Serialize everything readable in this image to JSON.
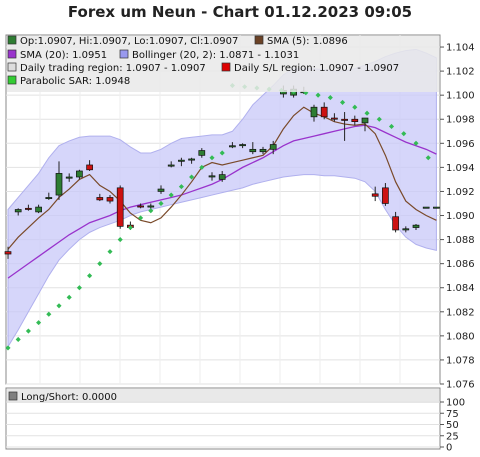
{
  "chart_data": [
    {
      "type": "candlestick",
      "title": "Forex um Neun - Chart 01.12.2023 09:05",
      "ylim": [
        1.076,
        1.105
      ],
      "yticks": [
        "1.076",
        "1.078",
        "1.080",
        "1.082",
        "1.084",
        "1.086",
        "1.088",
        "1.090",
        "1.092",
        "1.094",
        "1.096",
        "1.098",
        "1.100",
        "1.102",
        "1.104"
      ],
      "legend": [
        {
          "label": "Op:1.0907, Hi:1.0907, Lo:1.0907, Cl:1.0907",
          "color": "#2e7d32"
        },
        {
          "label": "SMA (5): 1.0896",
          "color": "#6b4226"
        },
        {
          "label": "SMA (20): 1.0951",
          "color": "#9933cc"
        },
        {
          "label": "Bollinger (20, 2): 1.0871 - 1.1031",
          "color": "#9999ee"
        },
        {
          "label": "Daily trading region: 1.0907 - 1.0907",
          "color": "#dddddd"
        },
        {
          "label": "Daily S/L region: 1.0907 - 1.0907",
          "color": "#dd0000"
        },
        {
          "label": "Parabolic SAR: 1.0948",
          "color": "#33cc33"
        }
      ],
      "candles": [
        {
          "o": 1.087,
          "h": 1.0874,
          "l": 1.0864,
          "c": 1.0868
        },
        {
          "o": 1.0903,
          "h": 1.0906,
          "l": 1.09,
          "c": 1.0905
        },
        {
          "o": 1.0906,
          "h": 1.0909,
          "l": 1.0904,
          "c": 1.0905
        },
        {
          "o": 1.0903,
          "h": 1.0909,
          "l": 1.0902,
          "c": 1.0907
        },
        {
          "o": 1.0915,
          "h": 1.0919,
          "l": 1.0913,
          "c": 1.0915
        },
        {
          "o": 1.0917,
          "h": 1.0945,
          "l": 1.0913,
          "c": 1.0935
        },
        {
          "o": 1.0932,
          "h": 1.0935,
          "l": 1.0928,
          "c": 1.0932
        },
        {
          "o": 1.0932,
          "h": 1.0938,
          "l": 1.093,
          "c": 1.0937
        },
        {
          "o": 1.0942,
          "h": 1.0946,
          "l": 1.0937,
          "c": 1.0938
        },
        {
          "o": 1.0915,
          "h": 1.0918,
          "l": 1.0912,
          "c": 1.0913
        },
        {
          "o": 1.0915,
          "h": 1.0917,
          "l": 1.091,
          "c": 1.0912
        },
        {
          "o": 1.0923,
          "h": 1.0925,
          "l": 1.0889,
          "c": 1.0891
        },
        {
          "o": 1.0892,
          "h": 1.0895,
          "l": 1.0888,
          "c": 1.089
        },
        {
          "o": 1.0908,
          "h": 1.091,
          "l": 1.0906,
          "c": 1.0907
        },
        {
          "o": 1.0907,
          "h": 1.091,
          "l": 1.0905,
          "c": 1.0908
        },
        {
          "o": 1.092,
          "h": 1.0925,
          "l": 1.0918,
          "c": 1.0922
        },
        {
          "o": 1.0942,
          "h": 1.0945,
          "l": 1.094,
          "c": 1.0942
        },
        {
          "o": 1.0945,
          "h": 1.0948,
          "l": 1.0941,
          "c": 1.0946
        },
        {
          "o": 1.0946,
          "h": 1.0948,
          "l": 1.0943,
          "c": 1.0947
        },
        {
          "o": 1.095,
          "h": 1.0956,
          "l": 1.0948,
          "c": 1.0954
        },
        {
          "o": 1.0933,
          "h": 1.0936,
          "l": 1.0929,
          "c": 1.0933
        },
        {
          "o": 1.093,
          "h": 1.0937,
          "l": 1.0928,
          "c": 1.0934
        },
        {
          "o": 1.0958,
          "h": 1.0961,
          "l": 1.0956,
          "c": 1.0958
        },
        {
          "o": 1.0958,
          "h": 1.096,
          "l": 1.0956,
          "c": 1.0959
        },
        {
          "o": 1.0953,
          "h": 1.0961,
          "l": 1.0951,
          "c": 1.0955
        },
        {
          "o": 1.0953,
          "h": 1.0957,
          "l": 1.0951,
          "c": 1.0955
        },
        {
          "o": 1.0955,
          "h": 1.0962,
          "l": 1.0951,
          "c": 1.0959
        },
        {
          "o": 1.1001,
          "h": 1.1008,
          "l": 1.0998,
          "c": 1.1004
        },
        {
          "o": 1.1,
          "h": 1.1008,
          "l": 1.0998,
          "c": 1.1005
        },
        {
          "o": 1.1003,
          "h": 1.1007,
          "l": 1.1001,
          "c": 1.1003
        },
        {
          "o": 1.0982,
          "h": 1.0992,
          "l": 1.0978,
          "c": 1.099
        },
        {
          "o": 1.099,
          "h": 1.0994,
          "l": 1.098,
          "c": 1.0982
        },
        {
          "o": 1.0981,
          "h": 1.0985,
          "l": 1.0978,
          "c": 1.098
        },
        {
          "o": 1.098,
          "h": 1.0986,
          "l": 1.0962,
          "c": 1.0979
        },
        {
          "o": 1.098,
          "h": 1.0983,
          "l": 1.0975,
          "c": 1.0978
        },
        {
          "o": 1.0977,
          "h": 1.0981,
          "l": 1.097,
          "c": 1.0981
        },
        {
          "o": 1.0918,
          "h": 1.0924,
          "l": 1.0912,
          "c": 1.0916
        },
        {
          "o": 1.0923,
          "h": 1.0927,
          "l": 1.0908,
          "c": 1.091
        },
        {
          "o": 1.0899,
          "h": 1.0903,
          "l": 1.0886,
          "c": 1.0888
        },
        {
          "o": 1.0888,
          "h": 1.0891,
          "l": 1.0886,
          "c": 1.0889
        },
        {
          "o": 1.089,
          "h": 1.0893,
          "l": 1.0888,
          "c": 1.0892
        },
        {
          "o": 1.0907,
          "h": 1.0907,
          "l": 1.0907,
          "c": 1.0907
        },
        {
          "o": 1.0907,
          "h": 1.0907,
          "l": 1.0907,
          "c": 1.0907
        }
      ],
      "sma5": [
        1.0872,
        1.0882,
        1.089,
        1.0898,
        1.0905,
        1.0915,
        1.0922,
        1.093,
        1.0934,
        1.0925,
        1.092,
        1.0912,
        1.0902,
        1.0896,
        1.0894,
        1.0898,
        1.0907,
        1.0917,
        1.0928,
        1.094,
        1.0944,
        1.0942,
        1.0944,
        1.0946,
        1.0948,
        1.095,
        1.0958,
        1.0972,
        1.0983,
        1.099,
        1.0985,
        1.0982,
        1.0978,
        1.0976,
        1.0975,
        1.0976,
        1.0968,
        1.095,
        1.0928,
        1.0912,
        1.0905,
        1.09,
        1.0896
      ],
      "sma20": [
        1.0848,
        1.0854,
        1.086,
        1.0866,
        1.0872,
        1.0878,
        1.0884,
        1.0889,
        1.0894,
        1.0897,
        1.09,
        1.0904,
        1.0907,
        1.0909,
        1.0911,
        1.0913,
        1.0915,
        1.0917,
        1.092,
        1.0923,
        1.0926,
        1.093,
        1.0935,
        1.094,
        1.0944,
        1.0948,
        1.0953,
        1.0958,
        1.0962,
        1.0964,
        1.0966,
        1.0968,
        1.097,
        1.0972,
        1.0974,
        1.0975,
        1.0973,
        1.0969,
        1.0965,
        1.0961,
        1.0958,
        1.0955,
        1.0951
      ],
      "bb_upper": [
        1.0905,
        1.0915,
        1.0925,
        1.0935,
        1.0948,
        1.0958,
        1.0962,
        1.0965,
        1.0966,
        1.0966,
        1.0966,
        1.0963,
        1.0957,
        1.0952,
        1.0952,
        1.0955,
        1.096,
        1.0964,
        1.0965,
        1.0966,
        1.0967,
        1.0967,
        1.097,
        1.098,
        1.0992,
        1.1,
        1.1008,
        1.1017,
        1.1022,
        1.1022,
        1.1022,
        1.1021,
        1.102,
        1.102,
        1.1022,
        1.1025,
        1.1028,
        1.1032,
        1.1035,
        1.1037,
        1.1038,
        1.1035,
        1.1031
      ],
      "bb_lower": [
        1.0791,
        1.0805,
        1.082,
        1.0835,
        1.085,
        1.0863,
        1.0872,
        1.088,
        1.0886,
        1.089,
        1.0893,
        1.0896,
        1.09,
        1.0903,
        1.0905,
        1.0907,
        1.0909,
        1.0911,
        1.0913,
        1.0915,
        1.0917,
        1.0919,
        1.0921,
        1.0923,
        1.0926,
        1.0928,
        1.093,
        1.0932,
        1.0933,
        1.0934,
        1.0934,
        1.0933,
        1.0933,
        1.0932,
        1.0931,
        1.0928,
        1.092,
        1.0905,
        1.0892,
        1.0882,
        1.0876,
        1.0873,
        1.0871
      ],
      "sar": [
        1.079,
        1.0797,
        1.0804,
        1.0811,
        1.0818,
        1.0825,
        1.0832,
        1.084,
        1.085,
        1.086,
        1.087,
        1.088,
        1.089,
        1.0898,
        1.0904,
        1.091,
        1.0917,
        1.0924,
        1.0932,
        1.094,
        1.0948,
        1.0952,
        1.1008,
        1.1007,
        1.1006,
        1.1005,
        1.1004,
        1.1003,
        1.1002,
        1.1,
        1.0998,
        1.0994,
        1.099,
        1.0985,
        1.098,
        1.0974,
        1.0968,
        1.096,
        1.0948
      ],
      "sar_x_start": [
        0,
        21
      ],
      "sar_x_start_second": 22
    },
    {
      "type": "panel",
      "legend": [
        {
          "label": "Long/Short: 0.0000",
          "color": "#808080"
        }
      ],
      "ylim": [
        0,
        100
      ],
      "yticks": [
        "0",
        "25",
        "50",
        "75",
        "100"
      ]
    }
  ]
}
